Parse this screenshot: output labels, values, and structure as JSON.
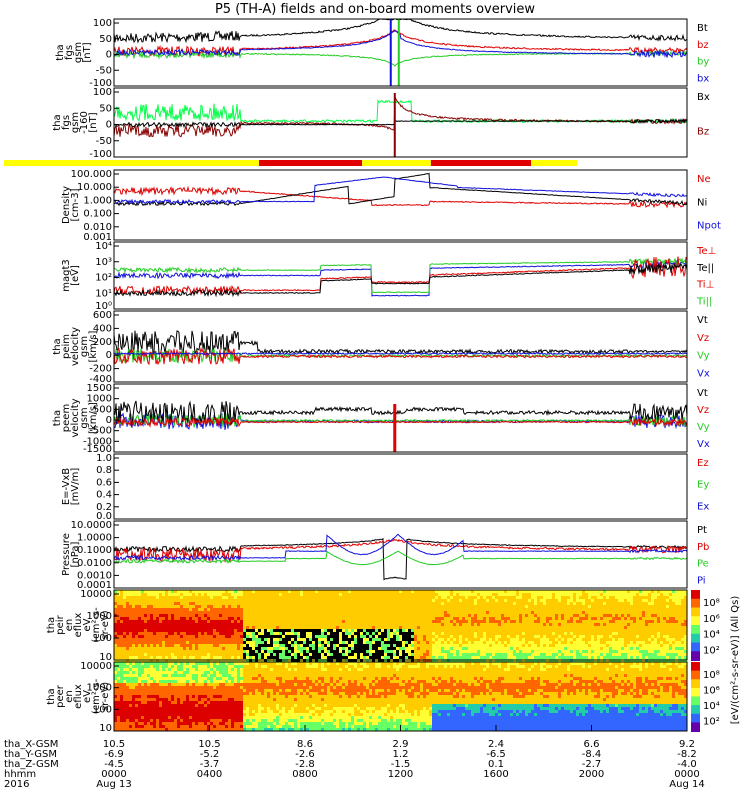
{
  "title": "P5 (TH-A) fields and on-board moments overview",
  "colors": {
    "black": "#000000",
    "red": "#e00000",
    "green": "#22cc22",
    "blue": "#1010dd",
    "darkred": "#880000",
    "brightgreen": "#00ff44",
    "yellow": "#ffff00"
  },
  "chart_data": [
    {
      "type": "line",
      "id": "fgs",
      "ylabel": [
        "tha",
        "fgs",
        "gsm",
        "[nT]"
      ],
      "yticks": [
        "100",
        "50",
        "0",
        "-50",
        "-100"
      ],
      "ylim": [
        -100,
        100
      ],
      "legend": [
        {
          "label": "Bt",
          "color": "#000000"
        },
        {
          "label": "bz",
          "color": "#e00000"
        },
        {
          "label": "by",
          "color": "#22cc22"
        },
        {
          "label": "bx",
          "color": "#1010dd"
        }
      ]
    },
    {
      "type": "line",
      "id": "fgs_dsl",
      "ylabel": [
        "tha",
        "fgs",
        "gsm",
        "-160",
        "[nT]"
      ],
      "yticks": [
        "100",
        "50",
        "0",
        "-50",
        "-100"
      ],
      "ylim": [
        -125,
        125
      ],
      "legend": [
        {
          "label": "Bx",
          "color": "#000000"
        },
        {
          "label": "Bz",
          "color": "#880000"
        }
      ]
    },
    {
      "type": "line",
      "id": "density",
      "ylabel": [
        "Density",
        "[cm-3]"
      ],
      "yticks": [
        "100.000",
        "10.000",
        "1.000",
        "0.100",
        "0.010",
        "0.001"
      ],
      "ylim": [
        0.001,
        300
      ],
      "legend": [
        {
          "label": "Ne",
          "color": "#e00000"
        },
        {
          "label": "Ni",
          "color": "#000000"
        },
        {
          "label": "Npot",
          "color": "#1010dd"
        }
      ]
    },
    {
      "type": "line",
      "id": "temperature",
      "ylabel": [
        "magt3",
        "[eV]"
      ],
      "yticks": [
        "10⁴",
        "10³",
        "10²",
        "10¹",
        "10⁰"
      ],
      "ylim": [
        1,
        30000
      ],
      "legend": [
        {
          "label": "Te⊥",
          "color": "#e00000"
        },
        {
          "label": "Te||",
          "color": "#000000"
        },
        {
          "label": "Ti⊥",
          "color": "#e00000"
        },
        {
          "label": "Ti||",
          "color": "#22cc22"
        }
      ]
    },
    {
      "type": "line",
      "id": "peim_velocity",
      "ylabel": [
        "tha",
        "peim",
        "velocity",
        "gsm",
        "[km/s]"
      ],
      "yticks": [
        "600",
        "400",
        "200",
        "0",
        "-200",
        "-400"
      ],
      "ylim": [
        -400,
        600
      ],
      "legend": [
        {
          "label": "Vt",
          "color": "#000000"
        },
        {
          "label": "Vz",
          "color": "#e00000"
        },
        {
          "label": "Vy",
          "color": "#22cc22"
        },
        {
          "label": "Vx",
          "color": "#1010dd"
        }
      ]
    },
    {
      "type": "line",
      "id": "peem_velocity",
      "ylabel": [
        "tha",
        "peem",
        "velocity",
        "gsm",
        "[km/s]"
      ],
      "yticks": [
        "1500",
        "1000",
        "500",
        "0",
        "-500",
        "-1000",
        "-1500"
      ],
      "ylim": [
        -1500,
        1500
      ],
      "legend": [
        {
          "label": "Vt",
          "color": "#000000"
        },
        {
          "label": "Vz",
          "color": "#e00000"
        },
        {
          "label": "Vy",
          "color": "#22cc22"
        },
        {
          "label": "Vx",
          "color": "#1010dd"
        }
      ]
    },
    {
      "type": "line",
      "id": "efield",
      "ylabel": [
        "E=-VxB",
        "[mV/m]"
      ],
      "yticks": [
        "1.0",
        "0.8",
        "0.6",
        "0.4",
        "0.2",
        "0.0"
      ],
      "ylim": [
        0,
        1
      ],
      "legend": [
        {
          "label": "Ez",
          "color": "#e00000"
        },
        {
          "label": "Ey",
          "color": "#22cc22"
        },
        {
          "label": "Ex",
          "color": "#1010dd"
        }
      ]
    },
    {
      "type": "line",
      "id": "pressure",
      "ylabel": [
        "Pressure",
        "[nPa]"
      ],
      "yticks": [
        "10.0000",
        "1.0000",
        "0.1000",
        "0.0100",
        "0.0010",
        "0.0001"
      ],
      "ylim": [
        0.0001,
        20
      ],
      "legend": [
        {
          "label": "Pt",
          "color": "#000000"
        },
        {
          "label": "Pb",
          "color": "#e00000"
        },
        {
          "label": "Pe",
          "color": "#22cc22"
        },
        {
          "label": "Pi",
          "color": "#1010dd"
        }
      ]
    },
    {
      "type": "heatmap",
      "id": "peir_spectrum",
      "ylabel": [
        "tha",
        "peir",
        "en",
        "eflux",
        "eV",
        "(cm²-s-",
        "sr-eV)"
      ],
      "yticks": [
        "10000",
        "1000",
        "100",
        "10"
      ],
      "ylim": [
        5,
        25000
      ],
      "colorbar_ticks": [
        "10⁸",
        "10⁶",
        "10⁴",
        "10²"
      ]
    },
    {
      "type": "heatmap",
      "id": "peer_spectrum",
      "ylabel": [
        "tha",
        "peer",
        "en",
        "eflux",
        "eV",
        "(cm²-s-",
        "sr-eV)"
      ],
      "yticks": [
        "10000",
        "1000",
        "100",
        "10"
      ],
      "ylim": [
        5,
        25000
      ],
      "colorbar_ticks": [
        "10⁸",
        "10⁶",
        "10⁴",
        "10²"
      ]
    }
  ],
  "colorbar_label": "[eV/(cm²-s-sr-eV)] (All Qs)",
  "status_bar": {
    "segments": [
      {
        "start": 0.0,
        "end": 0.445,
        "color": "#ffff00"
      },
      {
        "start": 0.445,
        "end": 0.625,
        "color": "#e00000"
      },
      {
        "start": 0.625,
        "end": 0.665,
        "color": "#ffff00"
      },
      {
        "start": 0.665,
        "end": 0.745,
        "color": "#ffff00"
      },
      {
        "start": 0.745,
        "end": 0.92,
        "color": "#e00000"
      },
      {
        "start": 0.92,
        "end": 1.0,
        "color": "#ffff00"
      }
    ]
  },
  "x_axis": {
    "rows": [
      {
        "label": "tha_X-GSM",
        "values": [
          "10.5",
          "10.5",
          "8.6",
          "2.9",
          "2.4",
          "6.6",
          "9.2"
        ]
      },
      {
        "label": "tha_Y-GSM",
        "values": [
          "-6.9",
          "-5.2",
          "-2.6",
          "1.2",
          "-6.5",
          "-8.4",
          "-8.2"
        ]
      },
      {
        "label": "tha_Z-GSM",
        "values": [
          "-4.5",
          "-3.7",
          "-2.8",
          "-1.5",
          "0.1",
          "-2.7",
          "-4.0"
        ]
      },
      {
        "label": "hhmm",
        "values": [
          "0000",
          "0400",
          "0800",
          "1200",
          "1600",
          "2000",
          "0000"
        ]
      },
      {
        "label": "2016",
        "values": [
          "Aug 13",
          "",
          "",
          "",
          "",
          "",
          "Aug 14"
        ]
      }
    ]
  }
}
